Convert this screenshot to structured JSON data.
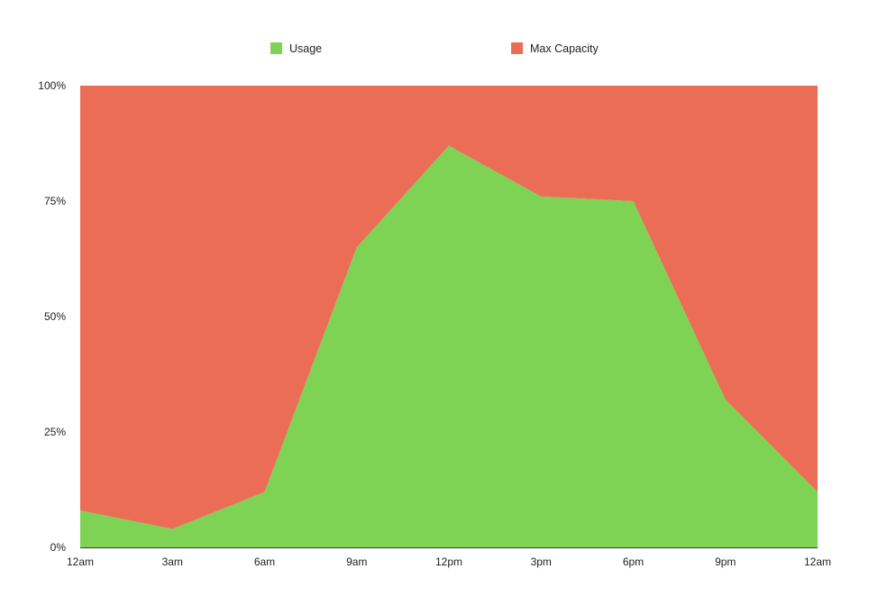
{
  "chart_data": {
    "type": "area",
    "stacked": true,
    "x": [
      "12am",
      "3am",
      "6am",
      "9am",
      "12pm",
      "3pm",
      "6pm",
      "9pm",
      "12am"
    ],
    "series": [
      {
        "name": "Usage",
        "color": "#7ed254",
        "values": [
          8,
          4,
          12,
          65,
          87,
          76,
          75,
          32,
          12
        ]
      },
      {
        "name": "Max Capacity",
        "color": "#eb6d55",
        "values": [
          92,
          96,
          88,
          35,
          13,
          24,
          25,
          68,
          88
        ]
      }
    ],
    "ylim": [
      0,
      100
    ],
    "yticks": [
      0,
      25,
      50,
      75,
      100
    ],
    "ytick_labels": [
      "0%",
      "25%",
      "50%",
      "75%",
      "100%"
    ],
    "legend_position": "top-center",
    "grid": false
  }
}
